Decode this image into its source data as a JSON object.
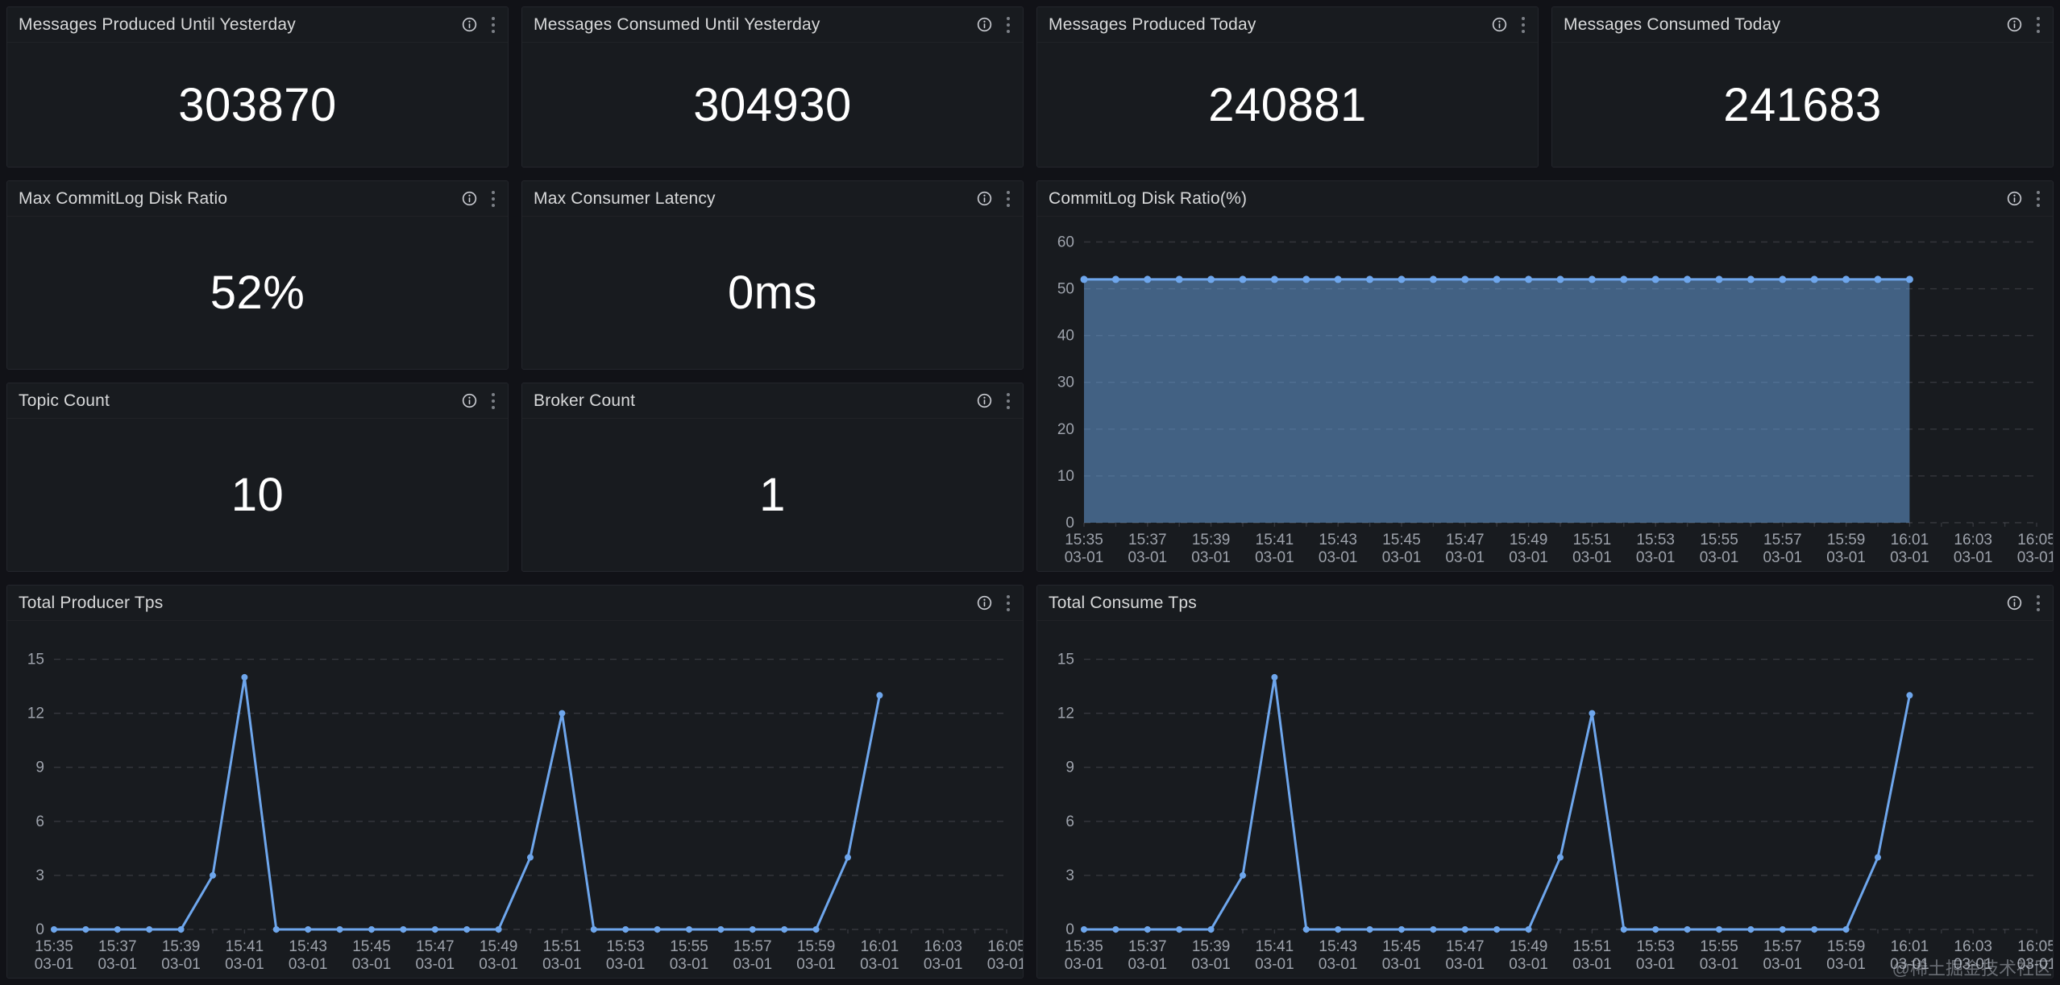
{
  "colors": {
    "page_bg": "#111217",
    "panel_bg": "#181B1F",
    "panel_border": "#24262C",
    "title_text": "#D8D9DA",
    "value_text": "#FFFFFF",
    "axis_text": "#9DA2AB",
    "grid_line": "rgba(204,204,220,0.16)",
    "series_line": "#6EA6EC",
    "series_fill": "rgba(108,167,232,0.5)"
  },
  "icons": {
    "info": "info-circle",
    "menu": "kebab-vertical-dots"
  },
  "stats": [
    {
      "title": "Messages Produced Until Yesterday",
      "value": "303870"
    },
    {
      "title": "Messages Consumed Until Yesterday",
      "value": "304930"
    },
    {
      "title": "Messages Produced Today",
      "value": "240881"
    },
    {
      "title": "Messages Consumed Today",
      "value": "241683"
    },
    {
      "title": "Max CommitLog Disk Ratio",
      "value": "52%"
    },
    {
      "title": "Max Consumer Latency",
      "value": "0ms"
    },
    {
      "title": "Topic Count",
      "value": "10"
    },
    {
      "title": "Broker Count",
      "value": "1"
    }
  ],
  "chart_data": [
    {
      "type": "area",
      "title": "CommitLog Disk Ratio(%)",
      "xlabel": "",
      "ylabel": "",
      "x_slots": 31,
      "x_label_every": 2,
      "x_tick_labels": [
        "15:35",
        "15:37",
        "15:39",
        "15:41",
        "15:43",
        "15:45",
        "15:47",
        "15:49",
        "15:51",
        "15:53",
        "15:55",
        "15:57",
        "15:59",
        "16:01",
        "16:03",
        "16:05"
      ],
      "x_sublabel": "03-01",
      "y_ticks": [
        0,
        10,
        20,
        30,
        40,
        50,
        60
      ],
      "ylim": [
        0,
        63
      ],
      "grid": "dashed-horizontal",
      "legend": "none",
      "point_radius": 4.5,
      "fill": true,
      "series": [
        {
          "name": "CommitLog Disk Ratio",
          "values": [
            52,
            52,
            52,
            52,
            52,
            52,
            52,
            52,
            52,
            52,
            52,
            52,
            52,
            52,
            52,
            52,
            52,
            52,
            52,
            52,
            52,
            52,
            52,
            52,
            52,
            52,
            52
          ]
        }
      ]
    },
    {
      "type": "line",
      "title": "Total Producer Tps",
      "xlabel": "",
      "ylabel": "",
      "x_slots": 31,
      "x_label_every": 2,
      "x_tick_labels": [
        "15:35",
        "15:37",
        "15:39",
        "15:41",
        "15:43",
        "15:45",
        "15:47",
        "15:49",
        "15:51",
        "15:53",
        "15:55",
        "15:57",
        "15:59",
        "16:01",
        "16:03",
        "16:05"
      ],
      "x_sublabel": "03-01",
      "y_ticks": [
        0,
        3,
        6,
        9,
        12,
        15
      ],
      "ylim": [
        0,
        16.5
      ],
      "grid": "dashed-horizontal",
      "legend": "none",
      "point_radius": 4,
      "fill": false,
      "series": [
        {
          "name": "Total Producer Tps",
          "values": [
            0,
            0,
            0,
            0,
            0,
            3,
            14,
            0,
            0,
            0,
            0,
            0,
            0,
            0,
            0,
            4,
            12,
            0,
            0,
            0,
            0,
            0,
            0,
            0,
            0,
            4,
            13
          ]
        }
      ]
    },
    {
      "type": "line",
      "title": "Total Consume Tps",
      "xlabel": "",
      "ylabel": "",
      "x_slots": 31,
      "x_label_every": 2,
      "x_tick_labels": [
        "15:35",
        "15:37",
        "15:39",
        "15:41",
        "15:43",
        "15:45",
        "15:47",
        "15:49",
        "15:51",
        "15:53",
        "15:55",
        "15:57",
        "15:59",
        "16:01",
        "16:03",
        "16:05"
      ],
      "x_sublabel": "03-01",
      "y_ticks": [
        0,
        3,
        6,
        9,
        12,
        15
      ],
      "ylim": [
        0,
        16.5
      ],
      "grid": "dashed-horizontal",
      "legend": "none",
      "point_radius": 4,
      "fill": false,
      "series": [
        {
          "name": "Total Consume Tps",
          "values": [
            0,
            0,
            0,
            0,
            0,
            3,
            14,
            0,
            0,
            0,
            0,
            0,
            0,
            0,
            0,
            4,
            12,
            0,
            0,
            0,
            0,
            0,
            0,
            0,
            0,
            4,
            13
          ]
        }
      ]
    }
  ],
  "watermark": "@稀土掘金技术社区"
}
